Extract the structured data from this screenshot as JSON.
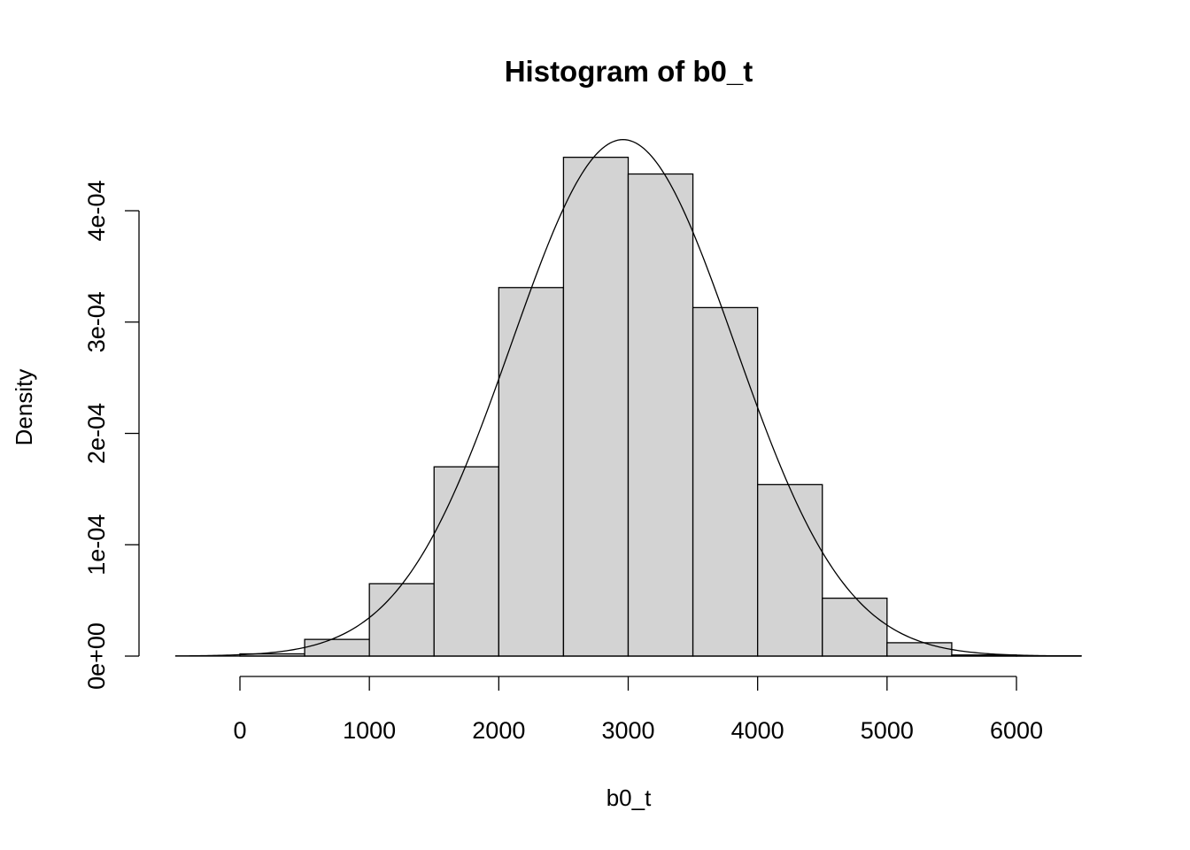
{
  "chart_data": {
    "type": "bar",
    "title": "Histogram of b0_t",
    "xlabel": "b0_t",
    "ylabel": "Density",
    "x_range": [
      -500,
      6500
    ],
    "ylim": [
      0,
      0.00046
    ],
    "x_ticks": [
      0,
      1000,
      2000,
      3000,
      4000,
      5000,
      6000
    ],
    "x_tick_labels": [
      "0",
      "1000",
      "2000",
      "3000",
      "4000",
      "5000",
      "6000"
    ],
    "y_ticks": [
      0,
      0.0001,
      0.0002,
      0.0003,
      0.0004
    ],
    "y_tick_labels": [
      "0e+00",
      "1e-04",
      "2e-04",
      "3e-04",
      "4e-04"
    ],
    "bins": [
      {
        "start": 0,
        "end": 500,
        "density": 2e-06
      },
      {
        "start": 500,
        "end": 1000,
        "density": 1.5e-05
      },
      {
        "start": 1000,
        "end": 1500,
        "density": 6.5e-05
      },
      {
        "start": 1500,
        "end": 2000,
        "density": 0.00017
      },
      {
        "start": 2000,
        "end": 2500,
        "density": 0.000331
      },
      {
        "start": 2500,
        "end": 3000,
        "density": 0.000448
      },
      {
        "start": 3000,
        "end": 3500,
        "density": 0.000433
      },
      {
        "start": 3500,
        "end": 4000,
        "density": 0.000313
      },
      {
        "start": 4000,
        "end": 4500,
        "density": 0.000154
      },
      {
        "start": 4500,
        "end": 5000,
        "density": 5.2e-05
      },
      {
        "start": 5000,
        "end": 5500,
        "density": 1.2e-05
      },
      {
        "start": 5500,
        "end": 6000,
        "density": 1e-06
      },
      {
        "start": 6000,
        "end": 6500,
        "density": 3e-07
      }
    ],
    "density_curve": {
      "mean": 2960,
      "sd": 860,
      "x_range": [
        -500,
        6500
      ]
    },
    "colors": {
      "bar_fill": "#d3d3d3",
      "bar_stroke": "#000000",
      "curve": "#000000"
    }
  }
}
